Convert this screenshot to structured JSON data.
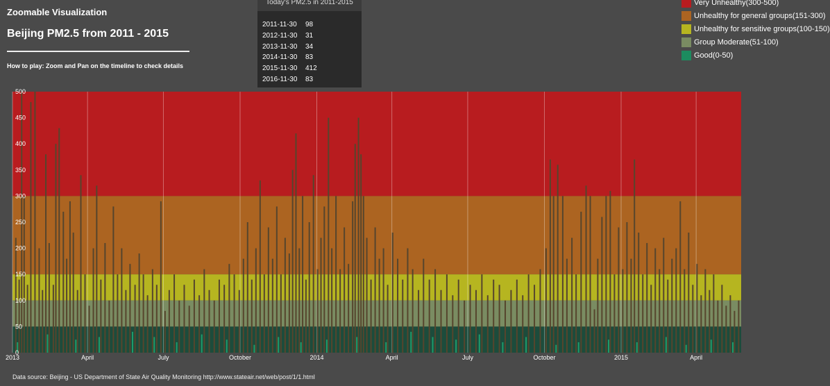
{
  "header": {
    "app_title": "Zoomable Visualization",
    "page_title": "Beijing PM2.5 from 2011 - 2015",
    "how_to": "How to play: Zoom and Pan on the timeline to check details"
  },
  "today_panel": {
    "title": "Today's PM2.5 in 2011-2015",
    "rows": [
      {
        "date": "2011-11-30",
        "value": "98"
      },
      {
        "date": "2012-11-30",
        "value": "31"
      },
      {
        "date": "2013-11-30",
        "value": "34"
      },
      {
        "date": "2014-11-30",
        "value": "83"
      },
      {
        "date": "2015-11-30",
        "value": "412"
      },
      {
        "date": "2016-11-30",
        "value": "83"
      }
    ]
  },
  "legend": [
    {
      "label": "Very Unhealthy(300-500)",
      "color": "#b81c1f"
    },
    {
      "label": "Unhealthy for general groups(151-300)",
      "color": "#ac6421"
    },
    {
      "label": "Unhealthy for sensitive groups(100-150)",
      "color": "#b6b520"
    },
    {
      "label": "Group Moderate(51-100)",
      "color": "#7a8c62"
    },
    {
      "label": "Good(0-50)",
      "color": "#1c8c5f"
    }
  ],
  "footer": {
    "source": "Data source: Beijing - US Department of State Air Quality Monitoring http://www.stateair.net/web/post/1/1.html"
  },
  "chart_data": {
    "type": "bar",
    "ylim": [
      0,
      500
    ],
    "y_ticks": [
      0,
      50,
      100,
      150,
      200,
      250,
      300,
      350,
      400,
      450,
      500
    ],
    "x_range": [
      "2013-01-01",
      "2015-05-25"
    ],
    "x_ticks": [
      {
        "date": "2013-01-01",
        "label": "2013"
      },
      {
        "date": "2013-04-01",
        "label": "April"
      },
      {
        "date": "2013-07-01",
        "label": "July"
      },
      {
        "date": "2013-10-01",
        "label": "October"
      },
      {
        "date": "2014-01-01",
        "label": "2014"
      },
      {
        "date": "2014-04-01",
        "label": "April"
      },
      {
        "date": "2014-07-01",
        "label": "July"
      },
      {
        "date": "2014-10-01",
        "label": "October"
      },
      {
        "date": "2015-01-01",
        "label": "2015"
      },
      {
        "date": "2015-04-01",
        "label": "April"
      }
    ],
    "bands": [
      {
        "from": 300,
        "to": 500,
        "color": "#b81c1f"
      },
      {
        "from": 150,
        "to": 300,
        "color": "#ac6421"
      },
      {
        "from": 100,
        "to": 150,
        "color": "#b6b520"
      },
      {
        "from": 50,
        "to": 100,
        "color": "#7a8c62"
      },
      {
        "from": 0,
        "to": 50,
        "color": "#1c4c3c"
      }
    ],
    "bar_color_over_50": "#56452d",
    "bar_color_under_50": "#1c9c6c",
    "series": [
      {
        "points": [
          [
            "2013-01-05",
            220
          ],
          [
            "2013-01-09",
            140
          ],
          [
            "2013-01-12",
            520
          ],
          [
            "2013-01-15",
            300
          ],
          [
            "2013-01-19",
            130
          ],
          [
            "2013-01-23",
            480
          ],
          [
            "2013-01-28",
            520
          ],
          [
            "2013-02-02",
            200
          ],
          [
            "2013-02-06",
            120
          ],
          [
            "2013-02-10",
            380
          ],
          [
            "2013-02-14",
            210
          ],
          [
            "2013-02-19",
            130
          ],
          [
            "2013-02-22",
            400
          ],
          [
            "2013-02-26",
            430
          ],
          [
            "2013-03-03",
            270
          ],
          [
            "2013-03-07",
            180
          ],
          [
            "2013-03-11",
            290
          ],
          [
            "2013-03-15",
            230
          ],
          [
            "2013-03-20",
            120
          ],
          [
            "2013-03-24",
            340
          ],
          [
            "2013-03-29",
            150
          ],
          [
            "2013-04-03",
            90
          ],
          [
            "2013-04-08",
            200
          ],
          [
            "2013-04-12",
            320
          ],
          [
            "2013-04-17",
            140
          ],
          [
            "2013-04-22",
            210
          ],
          [
            "2013-04-27",
            100
          ],
          [
            "2013-05-02",
            280
          ],
          [
            "2013-05-07",
            150
          ],
          [
            "2013-05-12",
            200
          ],
          [
            "2013-05-17",
            120
          ],
          [
            "2013-05-22",
            170
          ],
          [
            "2013-05-28",
            130
          ],
          [
            "2013-06-02",
            190
          ],
          [
            "2013-06-07",
            150
          ],
          [
            "2013-06-12",
            110
          ],
          [
            "2013-06-18",
            160
          ],
          [
            "2013-06-23",
            130
          ],
          [
            "2013-06-28",
            290
          ],
          [
            "2013-07-03",
            80
          ],
          [
            "2013-07-08",
            120
          ],
          [
            "2013-07-14",
            150
          ],
          [
            "2013-07-20",
            100
          ],
          [
            "2013-07-26",
            130
          ],
          [
            "2013-08-01",
            90
          ],
          [
            "2013-08-07",
            140
          ],
          [
            "2013-08-13",
            110
          ],
          [
            "2013-08-19",
            160
          ],
          [
            "2013-08-25",
            120
          ],
          [
            "2013-08-31",
            100
          ],
          [
            "2013-09-06",
            140
          ],
          [
            "2013-09-12",
            130
          ],
          [
            "2013-09-18",
            170
          ],
          [
            "2013-09-24",
            150
          ],
          [
            "2013-09-30",
            120
          ],
          [
            "2013-10-05",
            180
          ],
          [
            "2013-10-10",
            250
          ],
          [
            "2013-10-15",
            140
          ],
          [
            "2013-10-20",
            200
          ],
          [
            "2013-10-25",
            330
          ],
          [
            "2013-10-30",
            150
          ],
          [
            "2013-11-04",
            240
          ],
          [
            "2013-11-09",
            180
          ],
          [
            "2013-11-14",
            280
          ],
          [
            "2013-11-19",
            150
          ],
          [
            "2013-11-24",
            220
          ],
          [
            "2013-11-29",
            190
          ],
          [
            "2013-12-03",
            350
          ],
          [
            "2013-12-07",
            420
          ],
          [
            "2013-12-11",
            200
          ],
          [
            "2013-12-15",
            300
          ],
          [
            "2013-12-19",
            140
          ],
          [
            "2013-12-23",
            250
          ],
          [
            "2013-12-28",
            340
          ],
          [
            "2014-01-02",
            160
          ],
          [
            "2014-01-06",
            220
          ],
          [
            "2014-01-10",
            280
          ],
          [
            "2014-01-15",
            450
          ],
          [
            "2014-01-19",
            200
          ],
          [
            "2014-01-24",
            300
          ],
          [
            "2014-01-29",
            160
          ],
          [
            "2014-02-03",
            240
          ],
          [
            "2014-02-08",
            170
          ],
          [
            "2014-02-13",
            290
          ],
          [
            "2014-02-16",
            400
          ],
          [
            "2014-02-20",
            450
          ],
          [
            "2014-02-23",
            380
          ],
          [
            "2014-02-26",
            300
          ],
          [
            "2014-03-02",
            220
          ],
          [
            "2014-03-07",
            140
          ],
          [
            "2014-03-12",
            240
          ],
          [
            "2014-03-17",
            180
          ],
          [
            "2014-03-22",
            200
          ],
          [
            "2014-03-27",
            130
          ],
          [
            "2014-04-02",
            230
          ],
          [
            "2014-04-08",
            180
          ],
          [
            "2014-04-14",
            140
          ],
          [
            "2014-04-20",
            200
          ],
          [
            "2014-04-26",
            160
          ],
          [
            "2014-05-03",
            120
          ],
          [
            "2014-05-09",
            180
          ],
          [
            "2014-05-16",
            140
          ],
          [
            "2014-05-23",
            160
          ],
          [
            "2014-05-30",
            120
          ],
          [
            "2014-06-06",
            150
          ],
          [
            "2014-06-13",
            110
          ],
          [
            "2014-06-20",
            140
          ],
          [
            "2014-06-27",
            100
          ],
          [
            "2014-07-04",
            130
          ],
          [
            "2014-07-11",
            120
          ],
          [
            "2014-07-18",
            150
          ],
          [
            "2014-07-25",
            110
          ],
          [
            "2014-08-01",
            140
          ],
          [
            "2014-08-08",
            130
          ],
          [
            "2014-08-15",
            100
          ],
          [
            "2014-08-22",
            120
          ],
          [
            "2014-08-29",
            140
          ],
          [
            "2014-09-05",
            110
          ],
          [
            "2014-09-12",
            150
          ],
          [
            "2014-09-19",
            130
          ],
          [
            "2014-09-26",
            160
          ],
          [
            "2014-10-03",
            200
          ],
          [
            "2014-10-08",
            370
          ],
          [
            "2014-10-12",
            300
          ],
          [
            "2014-10-17",
            360
          ],
          [
            "2014-10-23",
            300
          ],
          [
            "2014-10-28",
            180
          ],
          [
            "2014-11-03",
            220
          ],
          [
            "2014-11-08",
            150
          ],
          [
            "2014-11-14",
            270
          ],
          [
            "2014-11-20",
            320
          ],
          [
            "2014-11-25",
            300
          ],
          [
            "2014-11-30",
            83
          ],
          [
            "2014-12-04",
            180
          ],
          [
            "2014-12-09",
            260
          ],
          [
            "2014-12-14",
            300
          ],
          [
            "2014-12-19",
            310
          ],
          [
            "2014-12-24",
            150
          ],
          [
            "2014-12-29",
            240
          ],
          [
            "2015-01-03",
            160
          ],
          [
            "2015-01-08",
            250
          ],
          [
            "2015-01-13",
            180
          ],
          [
            "2015-01-17",
            370
          ],
          [
            "2015-01-22",
            230
          ],
          [
            "2015-01-27",
            150
          ],
          [
            "2015-02-01",
            210
          ],
          [
            "2015-02-06",
            130
          ],
          [
            "2015-02-11",
            200
          ],
          [
            "2015-02-16",
            160
          ],
          [
            "2015-02-21",
            220
          ],
          [
            "2015-02-26",
            140
          ],
          [
            "2015-03-03",
            180
          ],
          [
            "2015-03-08",
            200
          ],
          [
            "2015-03-13",
            290
          ],
          [
            "2015-03-18",
            160
          ],
          [
            "2015-03-23",
            230
          ],
          [
            "2015-03-28",
            130
          ],
          [
            "2015-04-02",
            170
          ],
          [
            "2015-04-07",
            110
          ],
          [
            "2015-04-12",
            160
          ],
          [
            "2015-04-17",
            120
          ],
          [
            "2015-04-22",
            150
          ],
          [
            "2015-04-27",
            100
          ],
          [
            "2015-05-02",
            130
          ],
          [
            "2015-05-07",
            90
          ],
          [
            "2015-05-12",
            110
          ],
          [
            "2015-05-17",
            80
          ],
          [
            "2015-05-22",
            100
          ],
          [
            "2013-01-07",
            20
          ],
          [
            "2013-02-12",
            35
          ],
          [
            "2013-03-18",
            25
          ],
          [
            "2013-04-15",
            30
          ],
          [
            "2013-05-25",
            40
          ],
          [
            "2013-06-20",
            30
          ],
          [
            "2013-07-17",
            20
          ],
          [
            "2013-08-16",
            35
          ],
          [
            "2013-09-15",
            25
          ],
          [
            "2013-10-18",
            15
          ],
          [
            "2013-11-16",
            30
          ],
          [
            "2013-12-13",
            20
          ],
          [
            "2014-01-13",
            25
          ],
          [
            "2014-02-18",
            30
          ],
          [
            "2014-03-25",
            20
          ],
          [
            "2014-04-24",
            40
          ],
          [
            "2014-05-20",
            30
          ],
          [
            "2014-06-17",
            25
          ],
          [
            "2014-07-15",
            35
          ],
          [
            "2014-08-12",
            20
          ],
          [
            "2014-09-09",
            30
          ],
          [
            "2014-10-15",
            15
          ],
          [
            "2014-11-11",
            20
          ],
          [
            "2014-12-17",
            25
          ],
          [
            "2015-01-20",
            20
          ],
          [
            "2015-02-24",
            30
          ],
          [
            "2015-03-20",
            15
          ],
          [
            "2015-04-19",
            25
          ],
          [
            "2015-05-15",
            20
          ]
        ]
      }
    ]
  }
}
